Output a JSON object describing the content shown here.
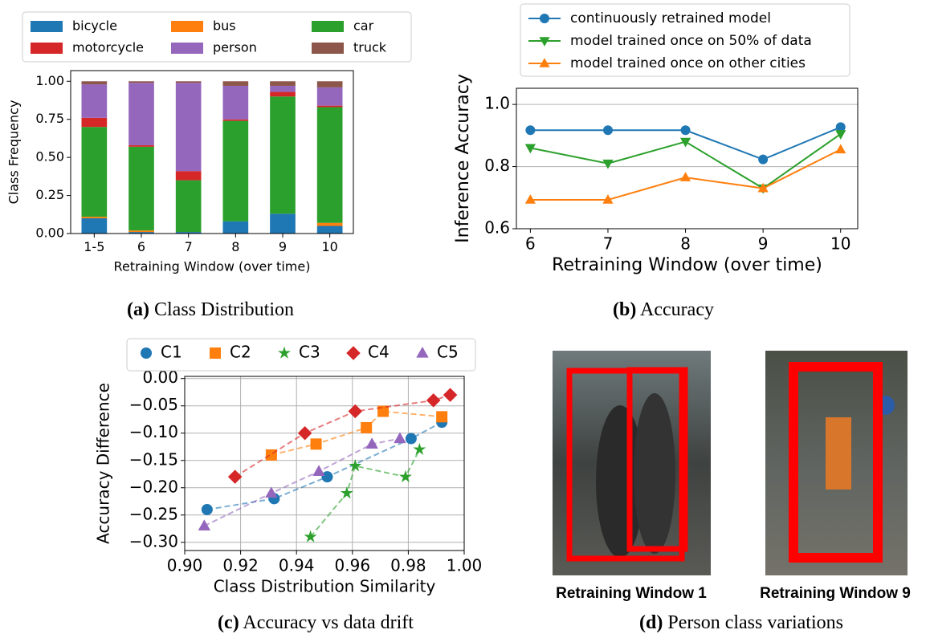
{
  "chart_data": [
    {
      "type": "bar",
      "stacked": true,
      "ylabel": "Class Frequency",
      "xlabel": "Retraining Window (over time)",
      "categories": [
        "1-5",
        "6",
        "7",
        "8",
        "9",
        "10"
      ],
      "series": [
        {
          "name": "bicycle",
          "color": "#1f77b4",
          "values": [
            0.1,
            0.01,
            0.01,
            0.08,
            0.13,
            0.05
          ]
        },
        {
          "name": "bus",
          "color": "#ff7f0e",
          "values": [
            0.01,
            0.01,
            0.0,
            0.0,
            0.0,
            0.02
          ]
        },
        {
          "name": "car",
          "color": "#2ca02c",
          "values": [
            0.59,
            0.55,
            0.34,
            0.66,
            0.77,
            0.76
          ]
        },
        {
          "name": "motorcycle",
          "color": "#d62728",
          "values": [
            0.06,
            0.01,
            0.06,
            0.01,
            0.03,
            0.01
          ]
        },
        {
          "name": "person",
          "color": "#9467bd",
          "values": [
            0.22,
            0.41,
            0.58,
            0.22,
            0.04,
            0.12
          ]
        },
        {
          "name": "truck",
          "color": "#8c564b",
          "values": [
            0.02,
            0.01,
            0.01,
            0.03,
            0.03,
            0.04
          ]
        }
      ],
      "ylim": [
        0,
        1.07
      ],
      "yticks": [
        {
          "value": 0,
          "label": "0.00"
        },
        {
          "value": 0.25,
          "label": "0.25"
        },
        {
          "value": 0.5,
          "label": "0.50"
        },
        {
          "value": 0.75,
          "label": "0.75"
        },
        {
          "value": 1,
          "label": "1.00"
        }
      ],
      "grid": "none",
      "legend": "top"
    },
    {
      "type": "line",
      "ylabel": "Inference Accuracy",
      "xlabel": "Retraining Window (over time)",
      "x": [
        6,
        7,
        8,
        9,
        10
      ],
      "series": [
        {
          "name": "continuously retrained model",
          "color": "#1f77b4",
          "marker": "o",
          "values": [
            0.917,
            0.917,
            0.917,
            0.823,
            0.927
          ]
        },
        {
          "name": "model trained once on 50% of data",
          "color": "#2ca02c",
          "marker": "v",
          "values": [
            0.86,
            0.81,
            0.88,
            0.73,
            0.905
          ]
        },
        {
          "name": "model trained once on other cities",
          "color": "#ff7f0e",
          "marker": "^",
          "values": [
            0.693,
            0.693,
            0.765,
            0.73,
            0.855
          ]
        }
      ],
      "xlim": [
        5.82,
        10.22
      ],
      "xticks": [
        6,
        7,
        8,
        9,
        10
      ],
      "ylim": [
        0.6,
        1.052
      ],
      "yticks": [
        0.6,
        0.8,
        {
          "value": 1,
          "label": "1.0"
        }
      ],
      "grid": "y",
      "legend": "top"
    },
    {
      "type": "scatter",
      "ylabel": "Accuracy Difference",
      "xlabel": "Class Distribution Similarity",
      "series": [
        {
          "name": "C1",
          "color": "#1f77b4",
          "marker": "o",
          "x": [
            0.908,
            0.932,
            0.951,
            0.981,
            0.992
          ],
          "y": [
            -0.24,
            -0.22,
            -0.18,
            -0.11,
            -0.08
          ]
        },
        {
          "name": "C2",
          "color": "#ff7f0e",
          "marker": "s",
          "x": [
            0.931,
            0.947,
            0.965,
            0.971,
            0.992
          ],
          "y": [
            -0.14,
            -0.12,
            -0.09,
            -0.06,
            -0.07
          ]
        },
        {
          "name": "C3",
          "color": "#2ca02c",
          "marker": "*",
          "x": [
            0.945,
            0.958,
            0.961,
            0.979,
            0.984
          ],
          "y": [
            -0.29,
            -0.21,
            -0.16,
            -0.18,
            -0.13
          ]
        },
        {
          "name": "C4",
          "color": "#d62728",
          "marker": "D",
          "x": [
            0.918,
            0.943,
            0.961,
            0.989,
            0.995
          ],
          "y": [
            -0.18,
            -0.1,
            -0.06,
            -0.04,
            -0.03
          ]
        },
        {
          "name": "C5",
          "color": "#9467bd",
          "marker": "^",
          "x": [
            0.907,
            0.931,
            0.948,
            0.967,
            0.977
          ],
          "y": [
            -0.27,
            -0.21,
            -0.17,
            -0.12,
            -0.11
          ]
        }
      ],
      "xlim": [
        0.9,
        1.0
      ],
      "xticks": [
        {
          "value": 0.9,
          "label": "0.90"
        },
        0.92,
        0.94,
        0.96,
        0.98,
        {
          "value": 1,
          "label": "1.00"
        }
      ],
      "ylim": [
        -0.315,
        0.004
      ],
      "yticks": [
        {
          "value": 0,
          "label": "0.00"
        },
        {
          "value": -0.05,
          "label": "−0.05"
        },
        {
          "value": -0.1,
          "label": "−0.10"
        },
        {
          "value": -0.15,
          "label": "−0.15"
        },
        {
          "value": -0.2,
          "label": "−0.20"
        },
        {
          "value": -0.25,
          "label": "−0.25"
        },
        {
          "value": -0.3,
          "label": "−0.30"
        }
      ],
      "grid": "both",
      "legend": "top"
    }
  ],
  "captions": [
    {
      "label": "(a)",
      "text": " Class Distribution"
    },
    {
      "label": "(b)",
      "text": " Accuracy"
    },
    {
      "label": "(c)",
      "text": " Accuracy vs data drift"
    },
    {
      "label": "(d)",
      "text": " Person class variations"
    }
  ],
  "images": [
    {
      "label": "Retraining Window 1"
    },
    {
      "label": "Retraining Window 9"
    }
  ]
}
